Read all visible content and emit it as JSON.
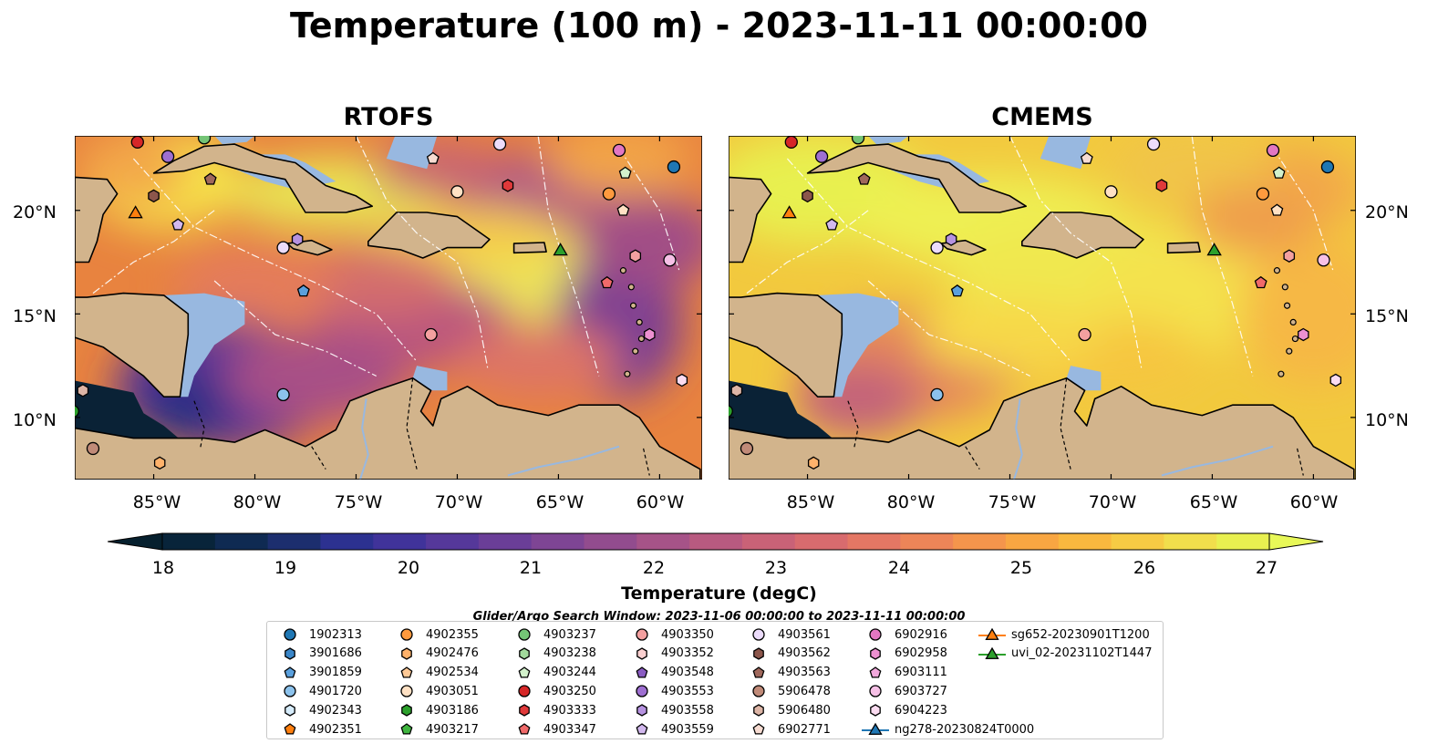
{
  "title": "Temperature (100 m) - 2023-11-11 00:00:00",
  "panels": [
    {
      "title": "RTOFS"
    },
    {
      "title": "CMEMS"
    }
  ],
  "axes": {
    "lat_labels": [
      "20°N",
      "15°N",
      "10°N"
    ],
    "lon_labels": [
      "85°W",
      "80°W",
      "75°W",
      "70°W",
      "65°W",
      "60°W"
    ]
  },
  "colorbar": {
    "label": "Temperature (degC)",
    "ticks": [
      "18",
      "19",
      "20",
      "21",
      "22",
      "23",
      "24",
      "25",
      "26",
      "27"
    ],
    "colors": [
      "#08243a",
      "#0f2a52",
      "#1c2e6e",
      "#2c3190",
      "#40339a",
      "#55389a",
      "#6a3e98",
      "#7e4594",
      "#924c8e",
      "#a65388",
      "#b85a80",
      "#c96277",
      "#d86b6e",
      "#e47764",
      "#ed8558",
      "#f4954c",
      "#f8a642",
      "#f9b83f",
      "#f6cb44",
      "#f1de4c",
      "#e8f050"
    ],
    "over_color": "#e8f858",
    "under_color": "#06202e"
  },
  "search_window": "Glider/Argo Search Window: 2023-11-06 00:00:00 to 2023-11-11 00:00:00",
  "legend": [
    {
      "label": "1902313",
      "color": "#1f77b4",
      "shape": "circle"
    },
    {
      "label": "3901686",
      "color": "#3a86c8",
      "shape": "hexagon"
    },
    {
      "label": "3901859",
      "color": "#5aa0dd",
      "shape": "pentagon"
    },
    {
      "label": "4901720",
      "color": "#8cc2ec",
      "shape": "circle"
    },
    {
      "label": "4902343",
      "color": "#d6ecfb",
      "shape": "hexagon"
    },
    {
      "label": "4902351",
      "color": "#ff7f0e",
      "shape": "pentagon"
    },
    {
      "label": "4902355",
      "color": "#ff9a3e",
      "shape": "circle"
    },
    {
      "label": "4902476",
      "color": "#ffb26b",
      "shape": "hexagon"
    },
    {
      "label": "4902534",
      "color": "#ffc996",
      "shape": "pentagon"
    },
    {
      "label": "4903051",
      "color": "#ffe1c4",
      "shape": "circle"
    },
    {
      "label": "4903186",
      "color": "#2ca02c",
      "shape": "hexagon"
    },
    {
      "label": "4903217",
      "color": "#3fb53f",
      "shape": "pentagon"
    },
    {
      "label": "4903237",
      "color": "#74c476",
      "shape": "circle"
    },
    {
      "label": "4903238",
      "color": "#a1d99b",
      "shape": "hexagon"
    },
    {
      "label": "4903244",
      "color": "#d3f2cc",
      "shape": "pentagon"
    },
    {
      "label": "4903250",
      "color": "#d62728",
      "shape": "circle"
    },
    {
      "label": "4903333",
      "color": "#e0393a",
      "shape": "hexagon"
    },
    {
      "label": "4903347",
      "color": "#f06a6a",
      "shape": "pentagon"
    },
    {
      "label": "4903350",
      "color": "#f4a0a0",
      "shape": "circle"
    },
    {
      "label": "4903352",
      "color": "#fbd0d0",
      "shape": "hexagon"
    },
    {
      "label": "4903548",
      "color": "#8a5cc2",
      "shape": "pentagon"
    },
    {
      "label": "4903553",
      "color": "#9e6fd1",
      "shape": "circle"
    },
    {
      "label": "4903558",
      "color": "#b692e0",
      "shape": "hexagon"
    },
    {
      "label": "4903559",
      "color": "#d2b8ee",
      "shape": "pentagon"
    },
    {
      "label": "4903561",
      "color": "#ecdcfb",
      "shape": "circle"
    },
    {
      "label": "4903562",
      "color": "#8c564b",
      "shape": "hexagon"
    },
    {
      "label": "4903563",
      "color": "#a0685c",
      "shape": "pentagon"
    },
    {
      "label": "5906478",
      "color": "#c08a78",
      "shape": "circle"
    },
    {
      "label": "5906480",
      "color": "#ddb5a6",
      "shape": "hexagon"
    },
    {
      "label": "6902771",
      "color": "#f7dcd2",
      "shape": "pentagon"
    },
    {
      "label": "6902916",
      "color": "#e377c2",
      "shape": "circle"
    },
    {
      "label": "6902958",
      "color": "#ec90d0",
      "shape": "hexagon"
    },
    {
      "label": "6903111",
      "color": "#f2a8dc",
      "shape": "pentagon"
    },
    {
      "label": "6903727",
      "color": "#f6c0e6",
      "shape": "circle"
    },
    {
      "label": "6904223",
      "color": "#fbdcf1",
      "shape": "hexagon"
    },
    {
      "label": "ng278-20230824T0000",
      "color": "#1f77b4",
      "shape": "triangle-line"
    },
    {
      "label": "sg652-20230901T1200",
      "color": "#ff7f0e",
      "shape": "triangle-line"
    },
    {
      "label": "uvi_02-20231102T1447",
      "color": "#2ca02c",
      "shape": "triangle-line"
    }
  ],
  "markers": [
    {
      "lon": -85.8,
      "lat": 23.3,
      "color": "#d62728",
      "shape": "circle"
    },
    {
      "lon": -82.5,
      "lat": 23.5,
      "color": "#74c476",
      "shape": "circle"
    },
    {
      "lon": -71.5,
      "lat": 23.9,
      "color": "#d6ecfb",
      "shape": "hexagon"
    },
    {
      "lon": -67.9,
      "lat": 23.2,
      "color": "#ecdcfb",
      "shape": "circle"
    },
    {
      "lon": -62.0,
      "lat": 22.9,
      "color": "#e377c2",
      "shape": "circle"
    },
    {
      "lon": -59.3,
      "lat": 22.1,
      "color": "#1f77b4",
      "shape": "circle"
    },
    {
      "lon": -84.3,
      "lat": 22.6,
      "color": "#9e6fd1",
      "shape": "circle"
    },
    {
      "lon": -82.2,
      "lat": 21.5,
      "color": "#a0685c",
      "shape": "pentagon"
    },
    {
      "lon": -85.0,
      "lat": 20.7,
      "color": "#8c564b",
      "shape": "hexagon"
    },
    {
      "lon": -85.9,
      "lat": 19.9,
      "color": "#ff7f0e",
      "shape": "triangle"
    },
    {
      "lon": -83.8,
      "lat": 19.3,
      "color": "#d2b8ee",
      "shape": "pentagon"
    },
    {
      "lon": -71.2,
      "lat": 22.5,
      "color": "#f7dcd2",
      "shape": "pentagon"
    },
    {
      "lon": -70.0,
      "lat": 20.9,
      "color": "#ffe1c4",
      "shape": "circle"
    },
    {
      "lon": -67.5,
      "lat": 21.2,
      "color": "#e0393a",
      "shape": "hexagon"
    },
    {
      "lon": -62.5,
      "lat": 20.8,
      "color": "#ff9a3e",
      "shape": "circle"
    },
    {
      "lon": -61.7,
      "lat": 21.8,
      "color": "#d3f2cc",
      "shape": "pentagon"
    },
    {
      "lon": -61.8,
      "lat": 20.0,
      "color": "#ffe1c4",
      "shape": "pentagon"
    },
    {
      "lon": -78.6,
      "lat": 18.2,
      "color": "#ecdcfb",
      "shape": "circle"
    },
    {
      "lon": -77.9,
      "lat": 18.6,
      "color": "#b692e0",
      "shape": "hexagon"
    },
    {
      "lon": -77.6,
      "lat": 16.1,
      "color": "#5aa0dd",
      "shape": "pentagon"
    },
    {
      "lon": -64.9,
      "lat": 18.1,
      "color": "#2ca02c",
      "shape": "triangle"
    },
    {
      "lon": -61.2,
      "lat": 17.8,
      "color": "#f4a0a0",
      "shape": "hexagon"
    },
    {
      "lon": -59.5,
      "lat": 17.6,
      "color": "#f6c0e6",
      "shape": "circle"
    },
    {
      "lon": -62.6,
      "lat": 16.5,
      "color": "#f06a6a",
      "shape": "pentagon"
    },
    {
      "lon": -71.3,
      "lat": 14.0,
      "color": "#f4a0a0",
      "shape": "circle"
    },
    {
      "lon": -60.5,
      "lat": 14.0,
      "color": "#ec90d0",
      "shape": "hexagon"
    },
    {
      "lon": -58.9,
      "lat": 11.8,
      "color": "#fbdcf1",
      "shape": "hexagon"
    },
    {
      "lon": -78.6,
      "lat": 11.1,
      "color": "#8cc2ec",
      "shape": "circle"
    },
    {
      "lon": -88.5,
      "lat": 11.3,
      "color": "#ddb5a6",
      "shape": "hexagon"
    },
    {
      "lon": -88.0,
      "lat": 8.5,
      "color": "#c08a78",
      "shape": "circle"
    },
    {
      "lon": -84.7,
      "lat": 7.8,
      "color": "#ffb26b",
      "shape": "hexagon"
    },
    {
      "lon": -89.0,
      "lat": 10.3,
      "color": "#2ca02c",
      "shape": "circle"
    }
  ]
}
